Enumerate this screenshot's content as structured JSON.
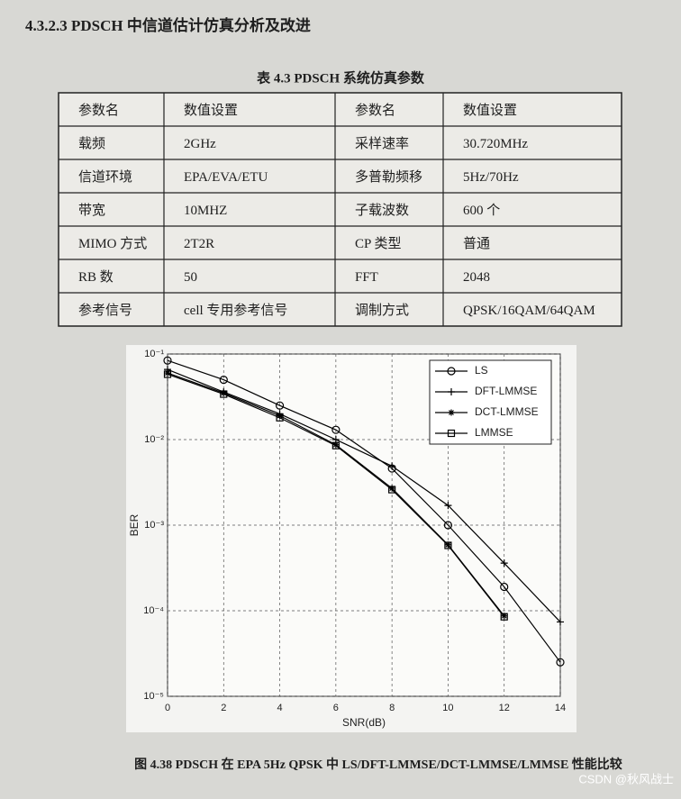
{
  "header": {
    "title": "4.3.2.3 PDSCH 中信道估计仿真分析及改进"
  },
  "table": {
    "caption": "表 4.3 PDSCH 系统仿真参数",
    "header": [
      "参数名",
      "数值设置",
      "参数名",
      "数值设置"
    ],
    "rows": [
      [
        "载频",
        "2GHz",
        "采样速率",
        "30.720MHz"
      ],
      [
        "信道环境",
        "EPA/EVA/ETU",
        "多普勒频移",
        "5Hz/70Hz"
      ],
      [
        "带宽",
        "10MHZ",
        "子载波数",
        "600 个"
      ],
      [
        "MIMO 方式",
        "2T2R",
        "CP 类型",
        "普通"
      ],
      [
        "RB 数",
        "50",
        "FFT",
        "2048"
      ],
      [
        "参考信号",
        "cell 专用参考信号",
        "调制方式",
        "QPSK/16QAM/64QAM"
      ]
    ]
  },
  "chart_data": {
    "type": "line",
    "x_label": "SNR(dB)",
    "y_label": "BER",
    "x": [
      0,
      2,
      4,
      6,
      8,
      10,
      12,
      14
    ],
    "series": [
      {
        "name": "LS",
        "color": "#000000",
        "marker": "circle",
        "values": [
          0.084,
          0.05,
          0.025,
          0.013,
          0.0046,
          0.001,
          0.00019,
          2.5e-05
        ]
      },
      {
        "name": "DFT-LMMSE",
        "color": "#000000",
        "marker": "plus",
        "values": [
          0.066,
          0.036,
          0.02,
          0.01,
          0.0049,
          0.0017,
          0.00036,
          7.4e-05
        ]
      },
      {
        "name": "DCT-LMMSE",
        "color": "#000000",
        "marker": "star",
        "values": [
          0.06,
          0.035,
          0.019,
          0.0087,
          0.0027,
          0.00059,
          8.7e-05,
          null
        ]
      },
      {
        "name": "LMMSE",
        "color": "#000000",
        "marker": "square",
        "values": [
          0.058,
          0.034,
          0.018,
          0.0085,
          0.0026,
          0.00058,
          8.5e-05,
          null
        ]
      }
    ],
    "xlim": [
      0,
      14
    ],
    "xticks": [
      0,
      2,
      4,
      6,
      8,
      10,
      12,
      14
    ],
    "ylim": [
      1e-05,
      0.1
    ],
    "y_scale": "log",
    "yticks": [
      {
        "value": 1e-05,
        "label": "10⁻⁵"
      },
      {
        "value": 0.0001,
        "label": "10⁻⁴"
      },
      {
        "value": 0.001,
        "label": "10⁻³"
      },
      {
        "value": 0.01,
        "label": "10⁻²"
      },
      {
        "value": 0.1,
        "label": "10⁻¹"
      }
    ],
    "grid": true,
    "legend_position": "upper right"
  },
  "caption": "图 4.38 PDSCH 在 EPA 5Hz QPSK 中 LS/DFT-LMMSE/DCT-LMMSE/LMMSE 性能比较",
  "watermark": "CSDN @秋风战士"
}
